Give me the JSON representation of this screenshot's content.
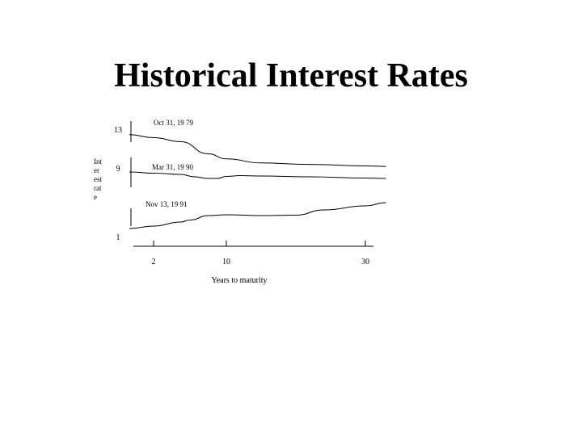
{
  "slide": {
    "title": "Historical Interest Rates"
  },
  "chart_data": {
    "type": "line",
    "title": "",
    "xlabel": "Years to maturity",
    "ylabel": "Int er est rat e",
    "ylabel_lines": [
      "Int",
      "er",
      "est",
      "rat",
      "e"
    ],
    "y_ticks": [
      "13",
      "9",
      "1"
    ],
    "x_ticks": [
      "2",
      "10",
      "30"
    ],
    "series": [
      {
        "name": "Oct 31, 19 79",
        "x": [
          0.5,
          2,
          5,
          8,
          10,
          15,
          22,
          30,
          33
        ],
        "y": [
          12.3,
          12.0,
          11.6,
          10.4,
          9.9,
          9.5,
          9.35,
          9.2,
          9.15
        ]
      },
      {
        "name": "Mar 31, 19 90",
        "x": [
          0.5,
          2,
          5,
          6.5,
          8,
          9,
          10,
          12,
          15,
          22,
          30,
          33
        ],
        "y": [
          8.5,
          8.35,
          8.2,
          7.9,
          7.7,
          7.7,
          7.95,
          8.05,
          8.0,
          7.9,
          7.75,
          7.7
        ]
      },
      {
        "name": "Nov 13, 19 91",
        "x": [
          0.5,
          2,
          5,
          6,
          8,
          10,
          15,
          20,
          24,
          30,
          33
        ],
        "y": [
          1.5,
          1.8,
          2.3,
          2.55,
          3.1,
          3.2,
          3.1,
          3.15,
          3.8,
          4.3,
          4.7
        ]
      }
    ]
  }
}
